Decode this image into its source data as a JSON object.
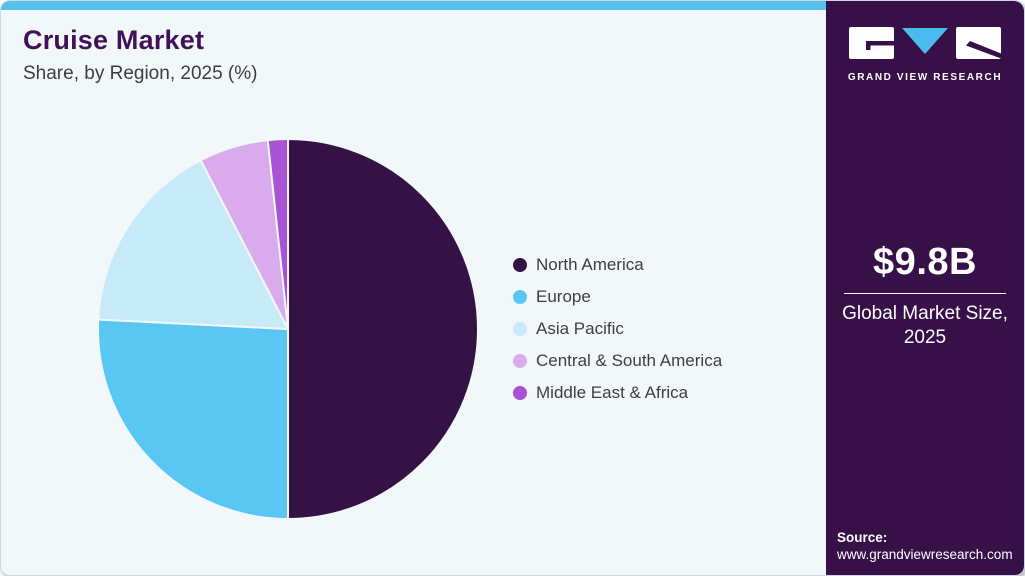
{
  "header": {
    "title": "Cruise Market",
    "subtitle": "Share, by Region, 2025 (%)"
  },
  "chart_data": {
    "type": "pie",
    "title": "Cruise Market Share, by Region, 2025 (%)",
    "categories": [
      "North America",
      "Europe",
      "Asia Pacific",
      "Central & South America",
      "Middle East & Africa"
    ],
    "values": [
      50.0,
      25.8,
      16.6,
      5.9,
      1.7
    ],
    "unit": "%",
    "colors": [
      "#351246",
      "#5ac7f3",
      "#c6eaf8",
      "#d9abec",
      "#a753d3"
    ],
    "start_angle": "top",
    "direction": "clockwise",
    "legend_position": "right",
    "data_labels_shown": false
  },
  "sidebar": {
    "brand": "GRAND VIEW RESEARCH",
    "stat": {
      "value": "$9.8B",
      "label": "Global Market Size, 2025"
    },
    "source_label": "Source:",
    "source_url": "www.grandviewresearch.com"
  },
  "theme": {
    "accent_blue": "#57c1ee",
    "brand_purple": "#371048",
    "title_purple": "#411259",
    "card_bg": "#f2f7fa",
    "logo_triangle_blue": "#49bbec"
  }
}
